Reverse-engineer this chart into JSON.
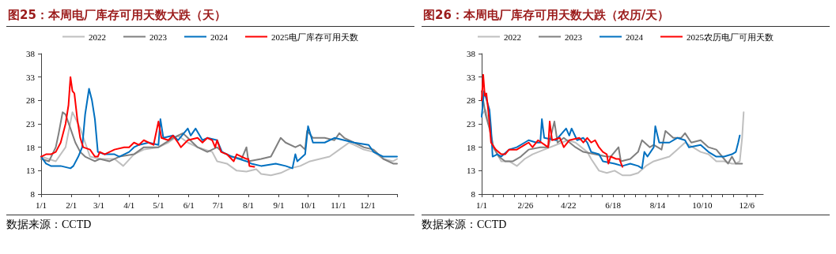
{
  "chart_data": [
    {
      "type": "line",
      "title": "图25：本周电厂库存可用天数大跌（天）",
      "annotations": [
        "数据来源：CCTD"
      ],
      "legend": "top",
      "marker": "none",
      "line_style": "solid",
      "xlim": [
        "--01-01",
        "--12-31"
      ],
      "xticks": [
        {
          "value": "--01-01",
          "label": "1/1"
        },
        {
          "value": "--02-01",
          "label": "2/1"
        },
        {
          "value": "--03-01",
          "label": "3/1"
        },
        {
          "value": "--04-01",
          "label": "4/1"
        },
        {
          "value": "--05-01",
          "label": "5/1"
        },
        {
          "value": "--06-01",
          "label": "6/1"
        },
        {
          "value": "--07-01",
          "label": "7/1"
        },
        {
          "value": "--08-01",
          "label": "8/1"
        },
        {
          "value": "--09-01",
          "label": "9/1"
        },
        {
          "value": "--10-01",
          "label": "10/1"
        },
        {
          "value": "--11-01",
          "label": "11/1"
        },
        {
          "value": "--12-01",
          "label": "12/1"
        },
        {
          "value": "--12-31",
          "label": null
        }
      ],
      "ylim": [
        8,
        38
      ],
      "yticks": [
        8,
        13,
        18,
        23,
        28,
        33,
        38
      ],
      "series": [
        {
          "name": "2022",
          "color": "#bfbfbf",
          "x": [
            "--01-01",
            "--01-16",
            "--01-26",
            "--02-02",
            "--02-10",
            "--02-15",
            "--02-20",
            "--03-02",
            "--03-17",
            "--03-26",
            "--04-06",
            "--04-16",
            "--05-01",
            "--05-11",
            "--05-21",
            "--05-31",
            "--06-10",
            "--06-25",
            "--06-30",
            "--07-10",
            "--07-20",
            "--07-30",
            "--08-09",
            "--08-14",
            "--08-24",
            "--09-03",
            "--09-13",
            "--09-23",
            "--10-03",
            "--10-13",
            "--10-23",
            "--11-02",
            "--11-12",
            "--11-17",
            "--11-27",
            "--12-07",
            "--12-17",
            "--12-27",
            "--12-31"
          ],
          "values": [
            16,
            15,
            18,
            25.5,
            22,
            19,
            16,
            15.5,
            15.5,
            14,
            16.5,
            17.5,
            18,
            19,
            20.5,
            19,
            18,
            17,
            15,
            14.5,
            13,
            12.8,
            13.3,
            12.3,
            12,
            12.5,
            13.5,
            14,
            15,
            15.5,
            16,
            17.5,
            19,
            18.5,
            17.5,
            17,
            15.5,
            15,
            15.5
          ]
        },
        {
          "name": "2023",
          "color": "#7f7f7f",
          "x": [
            "--01-01",
            "--01-09",
            "--01-16",
            "--01-19",
            "--01-23",
            "--01-26",
            "--01-31",
            "--02-05",
            "--02-10",
            "--02-15",
            "--02-25",
            "--03-02",
            "--03-12",
            "--03-22",
            "--04-06",
            "--04-16",
            "--05-01",
            "--05-16",
            "--05-26",
            "--05-31",
            "--06-10",
            "--06-20",
            "--06-30",
            "--07-05",
            "--07-15",
            "--07-25",
            "--07-30",
            "--08-01",
            "--08-14",
            "--08-24",
            "--08-29",
            "--09-03",
            "--09-08",
            "--09-18",
            "--09-23",
            "--09-28",
            "--09-30",
            "--10-06",
            "--10-18",
            "--10-28",
            "--11-02",
            "--11-07",
            "--11-17",
            "--11-27",
            "--12-07",
            "--12-17",
            "--12-27",
            "--12-31"
          ],
          "values": [
            15.5,
            15,
            18,
            21,
            25.5,
            25,
            22,
            19,
            17,
            16,
            15,
            15.5,
            15,
            16,
            16.5,
            18,
            18,
            20,
            21,
            20,
            18,
            17,
            18,
            17,
            16,
            15.5,
            18,
            15,
            15.5,
            16,
            18,
            20,
            19,
            18,
            18.5,
            17.5,
            21.5,
            20,
            20,
            19.5,
            21,
            20,
            19,
            18,
            17.5,
            15.5,
            14.5,
            14.5
          ]
        },
        {
          "name": "2024",
          "color": "#0070c0",
          "x": [
            "--01-01",
            "--01-06",
            "--01-11",
            "--01-21",
            "--01-31",
            "--02-03",
            "--02-08",
            "--02-12",
            "--02-15",
            "--02-19",
            "--02-22",
            "--02-25",
            "--02-28",
            "--03-07",
            "--03-17",
            "--03-22",
            "--04-01",
            "--04-06",
            "--04-11",
            "--04-21",
            "--05-01",
            "--05-03",
            "--05-06",
            "--05-16",
            "--05-21",
            "--05-31",
            "--06-03",
            "--06-08",
            "--06-15",
            "--06-20",
            "--06-30",
            "--07-05",
            "--07-15",
            "--07-30",
            "--08-04",
            "--08-14",
            "--08-29",
            "--09-08",
            "--09-15",
            "--09-18",
            "--09-20",
            "--09-28",
            "--10-01",
            "--10-06",
            "--10-18",
            "--10-28",
            "--11-07",
            "--11-17",
            "--12-02",
            "--12-07",
            "--12-17",
            "--12-27",
            "--12-31"
          ],
          "values": [
            16,
            14.5,
            14,
            14,
            13.5,
            14,
            16,
            18,
            25,
            30.5,
            28,
            24,
            17,
            16.5,
            16.5,
            16,
            17,
            18,
            18.5,
            19,
            18.5,
            24,
            20,
            20.5,
            19.5,
            22,
            20.5,
            22,
            19.5,
            20,
            19.5,
            17,
            16,
            15,
            14.5,
            14,
            14.5,
            14,
            13.5,
            16.5,
            15,
            16.5,
            22.5,
            19,
            19,
            20,
            19.5,
            19,
            18.5,
            17,
            16,
            16,
            16
          ]
        },
        {
          "name": "2025电厂库存可用天数",
          "color": "#ff0000",
          "x": [
            "--01-01",
            "--01-06",
            "--01-11",
            "--01-16",
            "--01-21",
            "--01-26",
            "--01-29",
            "--01-31",
            "--02-02",
            "--02-04",
            "--02-07",
            "--02-10",
            "--02-13",
            "--02-20",
            "--02-25",
            "--02-28",
            "--03-02",
            "--03-07",
            "--03-12",
            "--03-17",
            "--03-27",
            "--04-01",
            "--04-06",
            "--04-11",
            "--04-16",
            "--04-21",
            "--04-26",
            "--05-01",
            "--05-04",
            "--05-11",
            "--05-16",
            "--05-21",
            "--05-24",
            "--05-31",
            "--06-10",
            "--06-15",
            "--06-20",
            "--06-25",
            "--06-28",
            "--06-30",
            "--07-04",
            "--07-10",
            "--07-17",
            "--07-20",
            "--07-25",
            "--07-30",
            "--08-01",
            "--08-02",
            "--08-07"
          ],
          "values": [
            16,
            16.5,
            16.5,
            17,
            19,
            23,
            27,
            33,
            30,
            29.5,
            24,
            20,
            18,
            17.5,
            16,
            16,
            17,
            16.5,
            17,
            17.5,
            18,
            18,
            19,
            18.5,
            19.5,
            19,
            18.5,
            23.5,
            20,
            19.5,
            20.5,
            19,
            18,
            19.5,
            20,
            19,
            20,
            19.5,
            18,
            19.5,
            17,
            16.5,
            15,
            16.5,
            16,
            15.5,
            15.5,
            14,
            13.8
          ]
        }
      ]
    },
    {
      "type": "line",
      "title": "图26：本周电厂库存可用天数大跌（农历/天）",
      "annotations": [
        "数据来源：CCTD"
      ],
      "legend": "top",
      "marker": "none",
      "line_style": "solid",
      "xlim": [
        "--01-01",
        "--12-27"
      ],
      "xticks": [
        {
          "value": "--01-01",
          "label": "1/1"
        },
        {
          "value": "--01-15",
          "label": null
        },
        {
          "value": "--01-29",
          "label": null
        },
        {
          "value": "--02-12",
          "label": null
        },
        {
          "value": "--02-26",
          "label": "2/26"
        },
        {
          "value": "--03-12",
          "label": null
        },
        {
          "value": "--03-26",
          "label": null
        },
        {
          "value": "--04-09",
          "label": null
        },
        {
          "value": "--04-22",
          "label": "4/22"
        },
        {
          "value": "--05-07",
          "label": null
        },
        {
          "value": "--05-21",
          "label": null
        },
        {
          "value": "--06-04",
          "label": null
        },
        {
          "value": "--06-18",
          "label": "6/18"
        },
        {
          "value": "--07-02",
          "label": null
        },
        {
          "value": "--07-16",
          "label": null
        },
        {
          "value": "--07-30",
          "label": null
        },
        {
          "value": "--08-14",
          "label": "8/14"
        },
        {
          "value": "--08-27",
          "label": null
        },
        {
          "value": "--09-10",
          "label": null
        },
        {
          "value": "--09-24",
          "label": null
        },
        {
          "value": "--10-10",
          "label": "10/10"
        },
        {
          "value": "--10-22",
          "label": null
        },
        {
          "value": "--11-05",
          "label": null
        },
        {
          "value": "--11-19",
          "label": null
        },
        {
          "value": "--12-06",
          "label": "12/6"
        },
        {
          "value": "--12-17",
          "label": null
        }
      ],
      "ylim": [
        8,
        38
      ],
      "yticks": [
        8,
        13,
        18,
        23,
        28,
        33,
        38
      ],
      "series": [
        {
          "name": "2022",
          "color": "#bfbfbf",
          "x": [
            "--01-01",
            "--01-06",
            "--01-11",
            "--01-16",
            "--01-26",
            "--02-05",
            "--02-15",
            "--02-25",
            "--03-07",
            "--03-22",
            "--04-06",
            "--04-21",
            "--05-01",
            "--05-16",
            "--05-21",
            "--05-31",
            "--06-10",
            "--06-20",
            "--06-30",
            "--07-10",
            "--07-20",
            "--07-30",
            "--08-09",
            "--08-19",
            "--08-29",
            "--09-08",
            "--09-18",
            "--09-28",
            "--10-08",
            "--10-18",
            "--10-28",
            "--11-07",
            "--11-17",
            "--11-22",
            "--11-27",
            "--11-30",
            "--12-02"
          ],
          "values": [
            25,
            26,
            23,
            18,
            15,
            15,
            14,
            15.5,
            16.5,
            17.5,
            18.5,
            19.5,
            19,
            17,
            15.5,
            13,
            12.5,
            13,
            12,
            12,
            12.5,
            14,
            15,
            15.5,
            16,
            17.5,
            19,
            18,
            17,
            16.5,
            15,
            15,
            14.5,
            14.5,
            15,
            20,
            25.5
          ]
        },
        {
          "name": "2023",
          "color": "#7f7f7f",
          "x": [
            "--01-01",
            "--01-06",
            "--01-11",
            "--01-16",
            "--01-23",
            "--01-31",
            "--02-10",
            "--02-20",
            "--03-02",
            "--03-17",
            "--03-27",
            "--04-04",
            "--04-08",
            "--04-16",
            "--05-01",
            "--05-11",
            "--05-26",
            "--06-10",
            "--06-15",
            "--06-25",
            "--06-28",
            "--07-10",
            "--07-20",
            "--07-25",
            "--08-04",
            "--08-09",
            "--08-19",
            "--08-24",
            "--09-03",
            "--09-13",
            "--09-18",
            "--09-26",
            "--10-08",
            "--10-18",
            "--10-28",
            "--11-07",
            "--11-12",
            "--11-17",
            "--11-22",
            "--11-30"
          ],
          "values": [
            30,
            25,
            22,
            18,
            16,
            15,
            15,
            16,
            17.5,
            18,
            18,
            23.5,
            19,
            20,
            18,
            17,
            16.5,
            16,
            16,
            18,
            15,
            15.5,
            17,
            19.5,
            18,
            18.5,
            17.5,
            21.5,
            20,
            20,
            21,
            19,
            19.5,
            18,
            17.5,
            15.5,
            14.5,
            16,
            14.5,
            14.5
          ]
        },
        {
          "name": "2024",
          "color": "#0070c0",
          "x": [
            "--01-01",
            "--01-04",
            "--01-11",
            "--01-13",
            "--01-15",
            "--01-21",
            "--01-26",
            "--02-05",
            "--02-15",
            "--02-25",
            "--03-02",
            "--03-12",
            "--03-17",
            "--03-19",
            "--03-22",
            "--04-06",
            "--04-19",
            "--04-23",
            "--04-26",
            "--05-03",
            "--05-11",
            "--05-16",
            "--05-21",
            "--05-31",
            "--06-05",
            "--06-20",
            "--06-30",
            "--07-10",
            "--07-20",
            "--07-25",
            "--07-28",
            "--08-01",
            "--08-09",
            "--08-11",
            "--08-16",
            "--08-29",
            "--09-08",
            "--09-18",
            "--09-23",
            "--10-08",
            "--10-18",
            "--10-28",
            "--11-07",
            "--11-17",
            "--11-22",
            "--11-25",
            "--11-27"
          ],
          "values": [
            24.5,
            30,
            26,
            22,
            16,
            16.5,
            16,
            17.5,
            18,
            19,
            19.5,
            19,
            19,
            24,
            20,
            19.5,
            22,
            20.5,
            22,
            19.5,
            20,
            19,
            17,
            16.5,
            15,
            14.5,
            14,
            14.5,
            14,
            13.5,
            17,
            16,
            18,
            22.5,
            19,
            19,
            20,
            19.5,
            18,
            18.5,
            17,
            16,
            16,
            16.5,
            17,
            19,
            20.5
          ]
        },
        {
          "name": "2025农历电厂可用天数",
          "color": "#ff0000",
          "x": [
            "--01-01",
            "--01-03",
            "--01-05",
            "--01-07",
            "--01-10",
            "--01-13",
            "--01-19",
            "--01-26",
            "--01-31",
            "--02-05",
            "--02-15",
            "--02-25",
            "--03-02",
            "--03-07",
            "--03-14",
            "--03-27",
            "--03-29",
            "--04-01",
            "--04-11",
            "--04-16",
            "--04-23",
            "--05-06",
            "--05-11",
            "--05-16",
            "--05-21",
            "--05-26",
            "--05-31",
            "--06-05",
            "--06-10",
            "--06-12",
            "--06-15",
            "--06-22",
            "--06-26",
            "--06-30"
          ],
          "values": [
            28,
            33.5,
            29,
            29.5,
            25,
            19,
            17.5,
            16.5,
            16.5,
            17.5,
            17.5,
            18.5,
            19,
            18,
            19.5,
            18,
            23.5,
            19.5,
            20,
            18,
            19.5,
            20,
            19,
            20,
            19,
            19.5,
            18,
            17,
            16.5,
            14.5,
            16,
            15.5,
            15.5,
            13.8
          ]
        }
      ]
    }
  ]
}
